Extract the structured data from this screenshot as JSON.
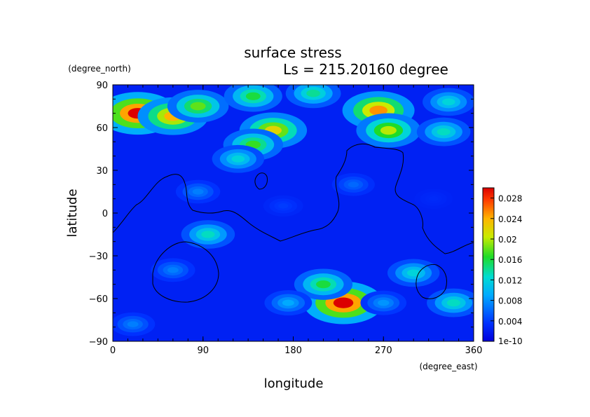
{
  "chart_data": {
    "type": "heatmap",
    "title": "surface stress",
    "subtitle": "Ls = 215.20160 degree",
    "xlabel": "longitude",
    "ylabel": "latitude",
    "x_unit": "(degree_east)",
    "y_unit": "(degree_north)",
    "xlim": [
      0,
      360
    ],
    "ylim": [
      -90,
      90
    ],
    "x_ticks": [
      "0",
      "90",
      "180",
      "270",
      "360"
    ],
    "y_ticks": [
      "90",
      "60",
      "30",
      "0",
      "−30",
      "−60",
      "−90"
    ],
    "colorbar": {
      "ticks": [
        "1e-10",
        "0.004",
        "0.008",
        "0.012",
        "0.016",
        "0.02",
        "0.024",
        "0.028"
      ],
      "vmin": 0,
      "vmax": 0.03
    },
    "hotspots": [
      {
        "lon": 25,
        "lat": 70,
        "value": 0.03
      },
      {
        "lon": 60,
        "lat": 68,
        "value": 0.024
      },
      {
        "lon": 85,
        "lat": 75,
        "value": 0.018
      },
      {
        "lon": 140,
        "lat": 82,
        "value": 0.016
      },
      {
        "lon": 200,
        "lat": 84,
        "value": 0.014
      },
      {
        "lon": 265,
        "lat": 72,
        "value": 0.025
      },
      {
        "lon": 275,
        "lat": 58,
        "value": 0.02
      },
      {
        "lon": 335,
        "lat": 78,
        "value": 0.012
      },
      {
        "lon": 330,
        "lat": 57,
        "value": 0.013
      },
      {
        "lon": 160,
        "lat": 58,
        "value": 0.022
      },
      {
        "lon": 140,
        "lat": 48,
        "value": 0.017
      },
      {
        "lon": 125,
        "lat": 38,
        "value": 0.012
      },
      {
        "lon": 95,
        "lat": -15,
        "value": 0.013
      },
      {
        "lon": 85,
        "lat": 15,
        "value": 0.007
      },
      {
        "lon": 230,
        "lat": -63,
        "value": 0.03
      },
      {
        "lon": 210,
        "lat": -50,
        "value": 0.016
      },
      {
        "lon": 300,
        "lat": -42,
        "value": 0.012
      },
      {
        "lon": 340,
        "lat": -63,
        "value": 0.013
      },
      {
        "lon": 60,
        "lat": -40,
        "value": 0.007
      },
      {
        "lon": 175,
        "lat": -63,
        "value": 0.009
      },
      {
        "lon": 270,
        "lat": -63,
        "value": 0.008
      },
      {
        "lon": 20,
        "lat": -78,
        "value": 0.007
      },
      {
        "lon": 240,
        "lat": 20,
        "value": 0.006
      },
      {
        "lon": 170,
        "lat": 5,
        "value": 0.004
      },
      {
        "lon": 320,
        "lat": 10,
        "value": 0.003
      }
    ]
  }
}
